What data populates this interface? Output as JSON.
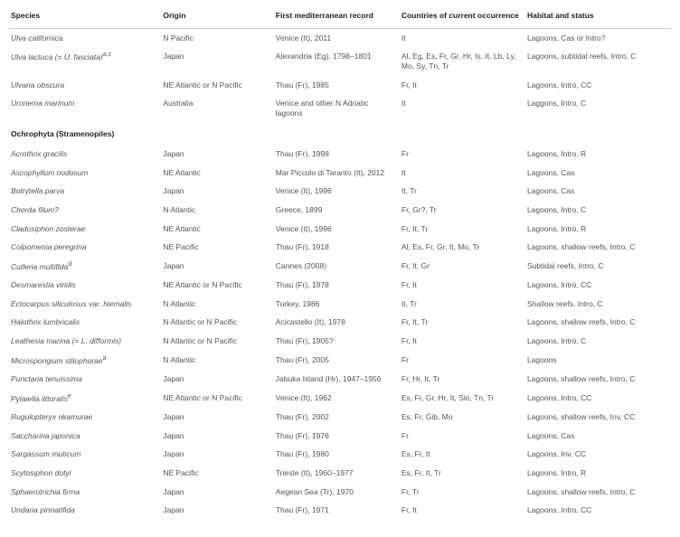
{
  "headers": {
    "species": "Species",
    "origin": "Origin",
    "first_record": "First mediterranean record",
    "countries": "Countries of current occurrence",
    "habitat": "Habitat and status"
  },
  "section_label": "Ochrophyta (Stramenopiles)",
  "pre_rows": [
    {
      "species": "Ulva californica",
      "sup": "",
      "origin": "N Pacific",
      "first": "Venice (It), 2011",
      "countries": "It",
      "habitat": "Lagoons, Cas or Intro?"
    },
    {
      "species": "Ulva lactuca (= U. fasciata)",
      "sup": "a,c",
      "origin": "Japan",
      "first": "Alexandria (Eg), 1798–1801",
      "countries": "Al, Eg, Es, Fr, Gr, Hr, Is, It, Lb, Ly, Mo, Sy, Tn, Tr",
      "habitat": "Lagoons, subtidal reefs, Intro, C"
    },
    {
      "species": "Ulvaria obscura",
      "sup": "",
      "origin": "NE Atlantic or N Pacific",
      "first": "Thau (Fr), 1985",
      "countries": "Fr, It",
      "habitat": "Lagoons, Intro, CC"
    },
    {
      "species": "Uronema marinum",
      "sup": "",
      "origin": "Australia",
      "first": "Venice and other N Adriatic lagoons",
      "countries": "It",
      "habitat": "Laggons, Intro, C"
    }
  ],
  "post_rows": [
    {
      "species": "Acrothrix gracilis",
      "sup": "",
      "origin": "Japan",
      "first": "Thau (Fr), 1998",
      "countries": "Fr",
      "habitat": "Lagoons, Intro, R"
    },
    {
      "species": "Ascophyllum nodosum",
      "sup": "",
      "origin": "NE Atlantic",
      "first": "Mar Piccolo di Taranto (It), 2012",
      "countries": "It",
      "habitat": "Lagoons, Cas"
    },
    {
      "species": "Botrytella parva",
      "sup": "",
      "origin": "Japan",
      "first": "Venice (It), 1996",
      "countries": "It, Tr",
      "habitat": "Lagoons, Cas"
    },
    {
      "species": "Chorda filum?",
      "sup": "",
      "origin": "N Atlantic",
      "first": "Greece, 1899",
      "countries": "Fr, Gr?, Tr",
      "habitat": "Lagoons, Intro, C"
    },
    {
      "species": "Cladosiphon zosterae",
      "sup": "",
      "origin": "NE Atlantic",
      "first": "Venice (It), 1996",
      "countries": "Fr, It, Tr",
      "habitat": "Lagoons, Intro, R"
    },
    {
      "species": "Colpomenia peregrina",
      "sup": "",
      "origin": "NE Pacific",
      "first": "Thau (Fr), 1918",
      "countries": "Al, Es, Fr, Gr, It, Mo, Tr",
      "habitat": "Lagoons, shallow reefs, Intro, C"
    },
    {
      "species": "Cutleria multifida",
      "sup": "d",
      "origin": "Japan",
      "first": "Cannes (2008)",
      "countries": "Fr, It, Gr",
      "habitat": "Subtidal reefs, Intro, C"
    },
    {
      "species": "Desmarestia viridis",
      "sup": "",
      "origin": "NE Atlantic or N Pacific",
      "first": "Thau (Fr), 1978",
      "countries": "Fr, It",
      "habitat": "Lagoons, Intro, CC"
    },
    {
      "species": "Ectocarpus siliculosus var. hiemalis",
      "sup": "",
      "origin": "N Atlantic",
      "first": "Turkey, 1986",
      "countries": "It, Tr",
      "habitat": "Shallow reefs, Intro, C"
    },
    {
      "species": "Halothrix lumbricalis",
      "sup": "",
      "origin": "N Atlantic or N Pacific",
      "first": "Acicastello (It), 1978",
      "countries": "Fr, It, Tr",
      "habitat": "Lagoons, shallow reefs, Intro, C"
    },
    {
      "species": "Leathesia marina (= L. difformis)",
      "sup": "",
      "origin": "N Atlantic or N Pacific",
      "first": "Thau (Fr), 1905?",
      "countries": "Fr, It",
      "habitat": "Lagoons, Intro, C"
    },
    {
      "species": "Microspongium stilophorae",
      "sup": "a",
      "origin": "N Atlantic",
      "first": "Thau (Fr), 2005",
      "countries": "Fr",
      "habitat": "Lagoons"
    },
    {
      "species": "Punctaria tenuissima",
      "sup": "",
      "origin": "Japan",
      "first": "Jabuka Island (Hr), 1947–1956",
      "countries": "Fr, Hr, It, Tr",
      "habitat": "Lagoons, shallow reefs, Intro, C"
    },
    {
      "species": "Pylaiella littoralis",
      "sup": "e",
      "origin": "NE Atlantic or N Pacific",
      "first": "Venice (It), 1962",
      "countries": "Es, Fr, Gr, Hr, It, Slo, Tn, Tr",
      "habitat": "Lagoons, Intro, CC"
    },
    {
      "species": "Rugulopteryx okamurae",
      "sup": "",
      "origin": "Japan",
      "first": "Thau (Fr), 2002",
      "countries": "Es, Fr, Gib, Mo",
      "habitat": "Lagoons, shallow reefs, Inv, CC"
    },
    {
      "species": "Saccharina japonica",
      "sup": "",
      "origin": "Japan",
      "first": "Thau (Fr), 1976",
      "countries": "Fr",
      "habitat": "Lagoons, Cas"
    },
    {
      "species": "Sargassum muticum",
      "sup": "",
      "origin": "Japan",
      "first": "Thau (Fr), 1980",
      "countries": "Es, Fr, It",
      "habitat": "Lagoons, Inv, CC"
    },
    {
      "species": "Scytosiphon dotyi",
      "sup": "",
      "origin": "NE Pacific",
      "first": "Trieste (It), 1960–1977",
      "countries": "Es, Fr, It, Tr",
      "habitat": "Lagoons, Intro, R"
    },
    {
      "species": "Sphaerotrichia firma",
      "sup": "",
      "origin": "Japan",
      "first": "Aegean Sea (Tr), 1970",
      "countries": "Fr, Tr",
      "habitat": "Lagoons, shallow reefs, Intro, C"
    },
    {
      "species": "Undaria pinnatifida",
      "sup": "",
      "origin": "Japan",
      "first": "Thau (Fr), 1971",
      "countries": "Fr, It",
      "habitat": "Lagoons, Intro, CC"
    }
  ]
}
